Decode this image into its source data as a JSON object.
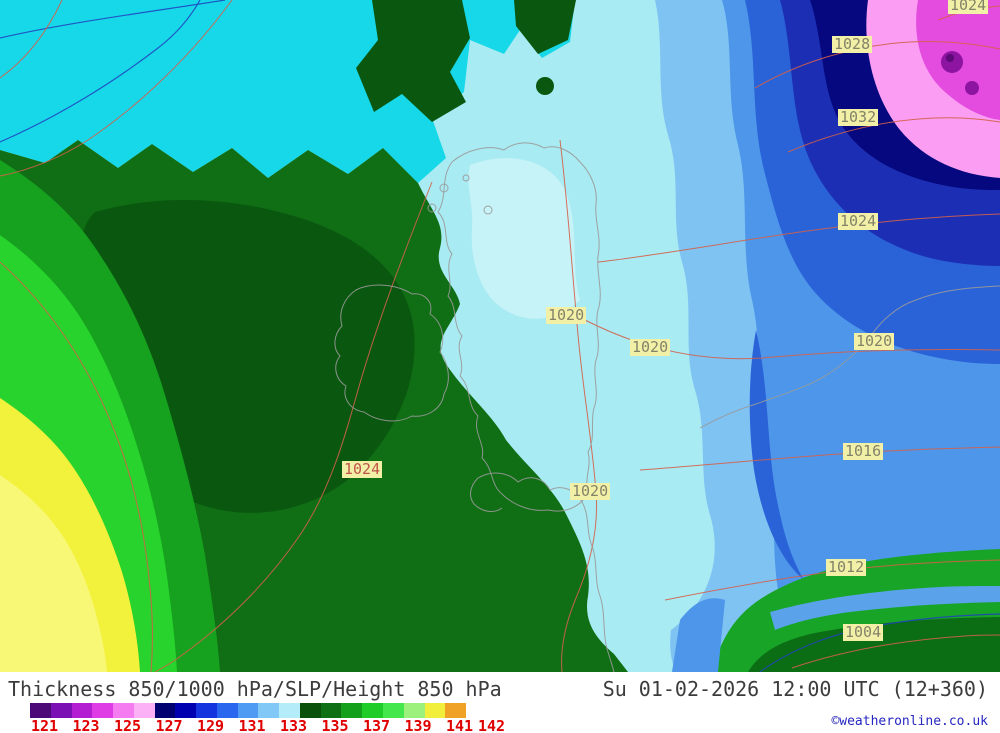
{
  "footer": {
    "title": "Thickness 850/1000 hPa/SLP/Height 850 hPa",
    "datetime": "Su 01-02-2026 12:00 UTC (12+360)",
    "copyright": "©weatheronline.co.uk"
  },
  "legend": {
    "ticks": [
      "121",
      "123",
      "125",
      "127",
      "129",
      "131",
      "133",
      "135",
      "137",
      "139",
      "141",
      "142"
    ],
    "tick_color": "#e00000",
    "colors": [
      "#4b0a78",
      "#7b10b4",
      "#b41ed2",
      "#e03ce6",
      "#f47cf0",
      "#fcb0f6",
      "#000070",
      "#0000b0",
      "#1434e0",
      "#2a66ee",
      "#4f9af2",
      "#82c8f6",
      "#b4ecfa",
      "#0a520c",
      "#0e7012",
      "#14a01a",
      "#20cc28",
      "#44e84c",
      "#9cf07c",
      "#f2ee3c",
      "#f0a226"
    ]
  },
  "map": {
    "pressure_labels": [
      {
        "text": "1024"
      },
      {
        "text": "1028"
      },
      {
        "text": "1032"
      },
      {
        "text": "1024"
      },
      {
        "text": "1020"
      },
      {
        "text": "1016"
      },
      {
        "text": "1012"
      },
      {
        "text": "1004"
      },
      {
        "text": "1020"
      },
      {
        "text": "1020"
      },
      {
        "text": "1020"
      },
      {
        "text": "1024"
      }
    ],
    "palette": {
      "bright_cyan": "#17d8e8",
      "pale_cyan": "#a9ebf2",
      "dark_green": "#106e15",
      "medium_green": "#16a21e",
      "bright_green": "#27d32c",
      "yellow": "#f2f23c",
      "light_blue": "#7fc3f2",
      "medium_blue": "#4d96ea",
      "deep_blue": "#2a63d8",
      "navy": "#1c2fb4",
      "dark_navy": "#05087e",
      "pink": "#fb9df2",
      "magenta": "#e44ce0",
      "purple": "#8c14a0",
      "isobar_red": "#d4604a",
      "height_blue": "#2040c0",
      "coast_gray": "#9a9a9a"
    }
  }
}
